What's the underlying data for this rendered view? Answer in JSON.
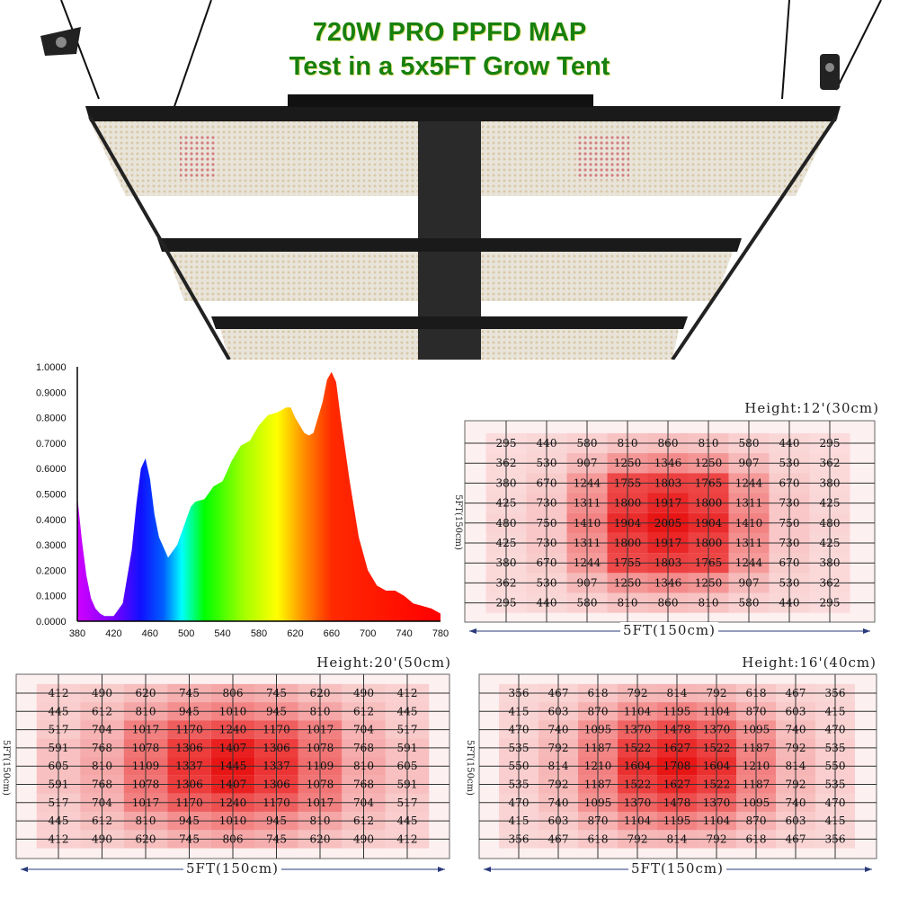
{
  "header": {
    "title_line1": "720W PRO PPFD MAP",
    "title_line2": "Test in a 5x5FT Grow Tent",
    "title_color": "#17800f"
  },
  "chart_data": [
    {
      "type": "area",
      "title": "",
      "xlabel": "",
      "ylabel": "",
      "xlim": [
        380,
        780
      ],
      "ylim": [
        0,
        1
      ],
      "x_ticks": [
        "380",
        "420",
        "460",
        "500",
        "540",
        "580",
        "620",
        "660",
        "700",
        "740",
        "780"
      ],
      "y_ticks": [
        "0.0000",
        "0.1000",
        "0.2000",
        "0.3000",
        "0.4000",
        "0.5000",
        "0.6000",
        "0.7000",
        "0.8000",
        "0.9000",
        "1.0000"
      ],
      "grid": false,
      "fill": "wavelength rainbow gradient",
      "x": [
        380,
        385,
        390,
        395,
        400,
        405,
        410,
        420,
        430,
        440,
        445,
        450,
        455,
        460,
        465,
        470,
        480,
        490,
        500,
        505,
        510,
        520,
        530,
        540,
        550,
        560,
        570,
        580,
        590,
        600,
        610,
        615,
        620,
        630,
        635,
        640,
        650,
        655,
        660,
        665,
        670,
        680,
        690,
        700,
        710,
        720,
        730,
        740,
        750,
        760,
        770,
        780
      ],
      "y": [
        0.49,
        0.32,
        0.18,
        0.09,
        0.05,
        0.03,
        0.02,
        0.02,
        0.07,
        0.28,
        0.46,
        0.6,
        0.64,
        0.56,
        0.42,
        0.33,
        0.25,
        0.3,
        0.4,
        0.45,
        0.47,
        0.48,
        0.53,
        0.55,
        0.63,
        0.69,
        0.71,
        0.77,
        0.81,
        0.82,
        0.84,
        0.84,
        0.8,
        0.74,
        0.73,
        0.74,
        0.86,
        0.95,
        0.98,
        0.94,
        0.8,
        0.55,
        0.33,
        0.2,
        0.14,
        0.12,
        0.12,
        0.1,
        0.07,
        0.06,
        0.05,
        0.03
      ]
    },
    {
      "type": "heatmap",
      "title": "Height:12'(30cm)",
      "xlabel": "5FT(150cm)",
      "ylabel": "5FT(150cm)",
      "color": "#e81010",
      "values": [
        [
          295,
          440,
          580,
          810,
          860,
          810,
          580,
          440,
          295
        ],
        [
          362,
          530,
          907,
          1250,
          1346,
          1250,
          907,
          530,
          362
        ],
        [
          380,
          670,
          1244,
          1755,
          1803,
          1765,
          1244,
          670,
          380
        ],
        [
          425,
          730,
          1311,
          1800,
          1917,
          1800,
          1311,
          730,
          425
        ],
        [
          480,
          750,
          1410,
          1904,
          2005,
          1904,
          1410,
          750,
          480
        ],
        [
          425,
          730,
          1311,
          1800,
          1917,
          1800,
          1311,
          730,
          425
        ],
        [
          380,
          670,
          1244,
          1755,
          1803,
          1765,
          1244,
          670,
          380
        ],
        [
          362,
          530,
          907,
          1250,
          1346,
          1250,
          907,
          530,
          362
        ],
        [
          295,
          440,
          580,
          810,
          860,
          810,
          580,
          440,
          295
        ]
      ]
    },
    {
      "type": "heatmap",
      "title": "Height:20'(50cm)",
      "xlabel": "5FT(150cm)",
      "ylabel": "5FT(150cm)",
      "color": "#e81010",
      "values": [
        [
          412,
          490,
          620,
          745,
          806,
          745,
          620,
          490,
          412
        ],
        [
          445,
          612,
          810,
          945,
          1010,
          945,
          810,
          612,
          445
        ],
        [
          517,
          704,
          1017,
          1170,
          1240,
          1170,
          1017,
          704,
          517
        ],
        [
          591,
          768,
          1078,
          1306,
          1407,
          1306,
          1078,
          768,
          591
        ],
        [
          605,
          810,
          1109,
          1337,
          1445,
          1337,
          1109,
          810,
          605
        ],
        [
          591,
          768,
          1078,
          1306,
          1407,
          1306,
          1078,
          768,
          591
        ],
        [
          517,
          704,
          1017,
          1170,
          1240,
          1170,
          1017,
          704,
          517
        ],
        [
          445,
          612,
          810,
          945,
          1010,
          945,
          810,
          612,
          445
        ],
        [
          412,
          490,
          620,
          745,
          806,
          745,
          620,
          490,
          412
        ]
      ]
    },
    {
      "type": "heatmap",
      "title": "Height:16'(40cm)",
      "xlabel": "5FT(150cm)",
      "ylabel": "5FT(150cm)",
      "color": "#e81010",
      "values": [
        [
          356,
          467,
          618,
          792,
          814,
          792,
          618,
          467,
          356
        ],
        [
          415,
          603,
          870,
          1104,
          1195,
          1104,
          870,
          603,
          415
        ],
        [
          470,
          740,
          1095,
          1370,
          1478,
          1370,
          1095,
          740,
          470
        ],
        [
          535,
          792,
          1187,
          1522,
          1627,
          1522,
          1187,
          792,
          535
        ],
        [
          550,
          814,
          1210,
          1604,
          1708,
          1604,
          1210,
          814,
          550
        ],
        [
          535,
          792,
          1187,
          1522,
          1627,
          1522,
          1187,
          792,
          535
        ],
        [
          470,
          740,
          1095,
          1370,
          1478,
          1370,
          1095,
          740,
          470
        ],
        [
          415,
          603,
          870,
          1104,
          1195,
          1104,
          870,
          603,
          415
        ],
        [
          356,
          467,
          618,
          792,
          814,
          792,
          618,
          467,
          356
        ]
      ]
    }
  ]
}
